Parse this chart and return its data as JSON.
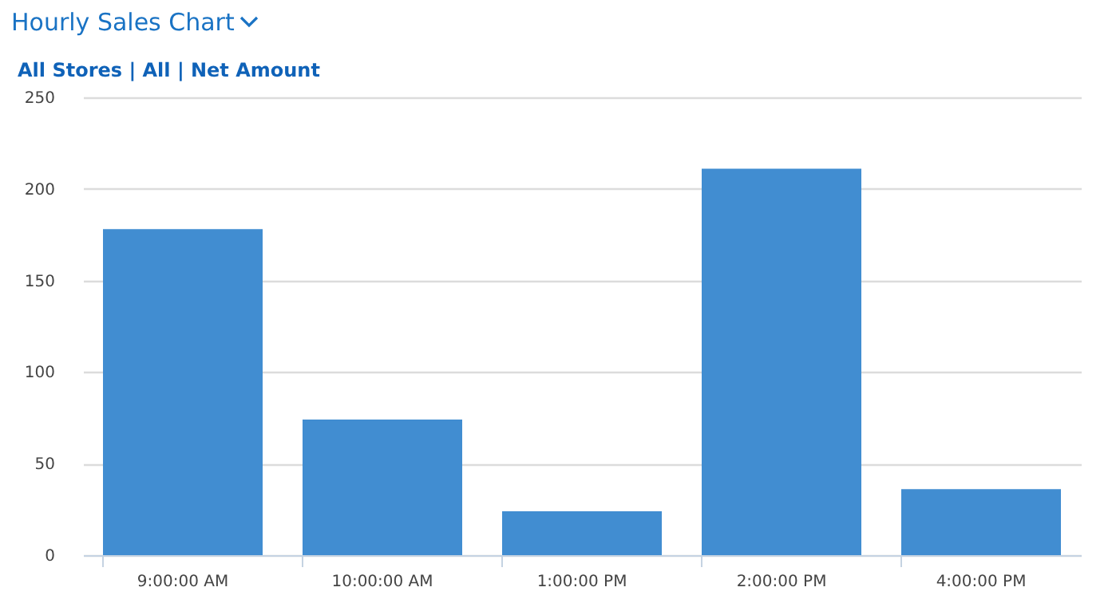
{
  "chart_data": {
    "type": "bar",
    "title": "Hourly Sales Chart",
    "subtitle": "All Stores | All | Net Amount",
    "categories": [
      "9:00:00 AM",
      "10:00:00 AM",
      "1:00:00 PM",
      "2:00:00 PM",
      "4:00:00 PM"
    ],
    "values": [
      178,
      74,
      24,
      211,
      36
    ],
    "color": "#3d8bd0",
    "ylim": [
      0,
      250
    ],
    "yticks": [
      0,
      50,
      100,
      150,
      200,
      250
    ],
    "grid": "y"
  }
}
